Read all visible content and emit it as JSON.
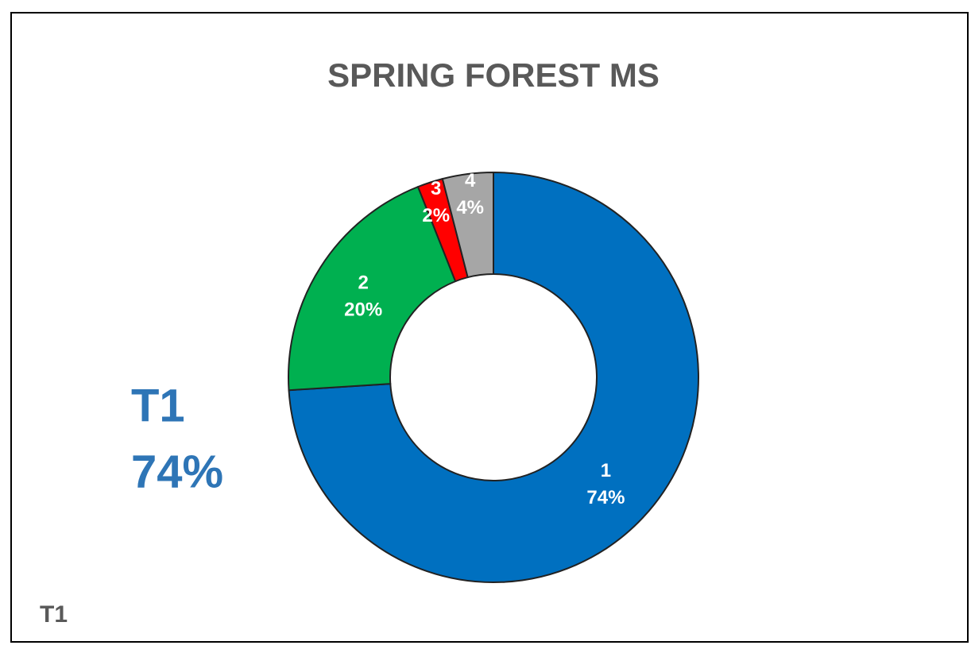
{
  "chart_data": {
    "type": "donut",
    "title": "SPRING FOREST MS",
    "categories": [
      "1",
      "2",
      "3",
      "4"
    ],
    "values": [
      74,
      20,
      2,
      4
    ],
    "value_labels": [
      "74%",
      "20%",
      "2%",
      "4%"
    ],
    "colors": [
      "#0070c0",
      "#00b050",
      "#ff0000",
      "#a6a6a6"
    ],
    "annotation": [
      "T1",
      "74%"
    ],
    "footer": "T1"
  }
}
